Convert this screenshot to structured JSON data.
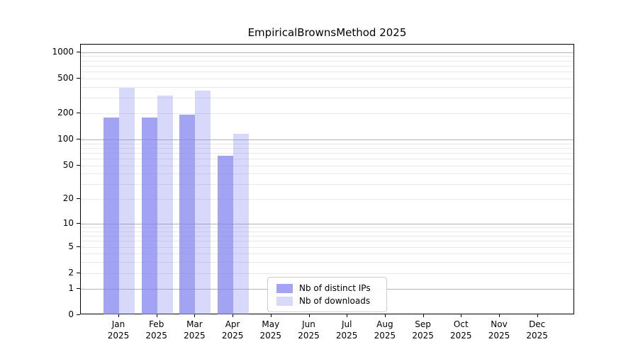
{
  "title": "EmpiricalBrownsMethod 2025",
  "colors": {
    "bar_distinct_ips": "rgba(127,127,240,0.72)",
    "bar_downloads": "rgba(127,127,240,0.30)",
    "legend_swatch_distinct_ips": "#a4a4f4",
    "legend_swatch_downloads": "#d9d9fa",
    "major_grid": "#b3b3b3",
    "minor_grid": "#e9e9e9",
    "axis": "#000000",
    "legend_border": "#cccccc"
  },
  "chart_data": {
    "type": "bar",
    "title": "EmpiricalBrownsMethod 2025",
    "x_months": [
      "Jan",
      "Feb",
      "Mar",
      "Apr",
      "May",
      "Jun",
      "Jul",
      "Aug",
      "Sep",
      "Oct",
      "Nov",
      "Dec"
    ],
    "x_year": "2025",
    "categories": [
      "Jan 2025",
      "Feb 2025",
      "Mar 2025",
      "Apr 2025",
      "May 2025",
      "Jun 2025",
      "Jul 2025",
      "Aug 2025",
      "Sep 2025",
      "Oct 2025",
      "Nov 2025",
      "Dec 2025"
    ],
    "series": [
      {
        "name": "Nb of distinct IPs",
        "values": [
          179,
          177,
          194,
          65,
          null,
          null,
          null,
          null,
          null,
          null,
          null,
          null
        ]
      },
      {
        "name": "Nb of downloads",
        "values": [
          391,
          321,
          363,
          117,
          null,
          null,
          null,
          null,
          null,
          null,
          null,
          null
        ]
      }
    ],
    "y_ticks": [
      0,
      1,
      2,
      5,
      10,
      20,
      50,
      100,
      200,
      500,
      1000
    ],
    "y_scale": "log1p",
    "ylim": [
      0,
      1220
    ],
    "xlabel": "",
    "ylabel": "",
    "grid": "both",
    "legend_position": "lower center"
  }
}
